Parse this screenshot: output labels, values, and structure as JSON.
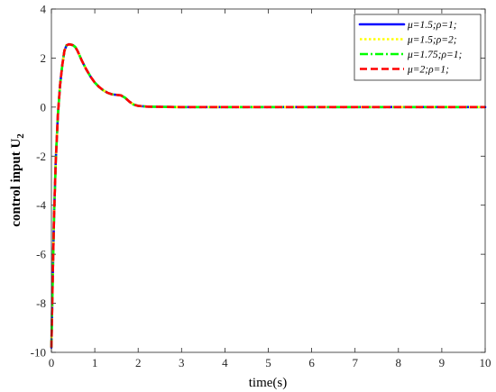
{
  "chart_data": {
    "type": "line",
    "xlabel": "time(s)",
    "ylabel": "control input U",
    "ylabel_subscript": "2",
    "xlim": [
      0,
      10
    ],
    "ylim": [
      -10,
      4
    ],
    "xticks": [
      0,
      1,
      2,
      3,
      4,
      5,
      6,
      7,
      8,
      9,
      10
    ],
    "yticks": [
      -10,
      -8,
      -6,
      -4,
      -2,
      0,
      2,
      4
    ],
    "grid": false,
    "legend_position": "top-right",
    "series": [
      {
        "name": "μ=1.5;ρ=1;",
        "color": "#0000ff",
        "dash": "solid",
        "x": [
          0,
          0.03,
          0.06,
          0.1,
          0.15,
          0.2,
          0.25,
          0.3,
          0.35,
          0.4,
          0.45,
          0.5,
          0.55,
          0.6,
          0.7,
          0.8,
          0.9,
          1.0,
          1.1,
          1.2,
          1.3,
          1.4,
          1.5,
          1.6,
          1.7,
          1.8,
          1.9,
          2.0,
          2.2,
          2.5,
          3,
          4,
          5,
          6,
          7,
          8,
          9,
          10
        ],
        "y": [
          -9.8,
          -7.0,
          -4.5,
          -2.2,
          -0.3,
          0.9,
          1.7,
          2.3,
          2.52,
          2.56,
          2.55,
          2.52,
          2.45,
          2.3,
          1.9,
          1.55,
          1.25,
          1.0,
          0.82,
          0.68,
          0.58,
          0.52,
          0.5,
          0.48,
          0.38,
          0.22,
          0.1,
          0.05,
          0.02,
          0.01,
          0,
          0,
          0,
          0,
          0,
          0,
          0,
          0
        ]
      },
      {
        "name": "μ=1.5;ρ=2;",
        "color": "#ffff00",
        "dash": "dotted",
        "x": [
          0,
          0.03,
          0.06,
          0.1,
          0.15,
          0.2,
          0.25,
          0.3,
          0.35,
          0.4,
          0.45,
          0.5,
          0.55,
          0.6,
          0.7,
          0.8,
          0.9,
          1.0,
          1.1,
          1.2,
          1.3,
          1.4,
          1.5,
          1.6,
          1.7,
          1.8,
          1.9,
          2.0,
          2.2,
          2.5,
          3,
          4,
          5,
          6,
          7,
          8,
          9,
          10
        ],
        "y": [
          -9.8,
          -7.0,
          -4.5,
          -2.2,
          -0.3,
          0.9,
          1.7,
          2.3,
          2.52,
          2.56,
          2.55,
          2.52,
          2.45,
          2.3,
          1.9,
          1.55,
          1.25,
          1.0,
          0.82,
          0.68,
          0.58,
          0.52,
          0.5,
          0.48,
          0.38,
          0.22,
          0.1,
          0.05,
          0.02,
          0.01,
          0,
          0,
          0,
          0,
          0,
          0,
          0,
          0
        ]
      },
      {
        "name": "μ=1.75;ρ=1;",
        "color": "#00ff00",
        "dash": "dashdot",
        "x": [
          0,
          0.03,
          0.06,
          0.1,
          0.15,
          0.2,
          0.25,
          0.3,
          0.35,
          0.4,
          0.45,
          0.5,
          0.55,
          0.6,
          0.7,
          0.8,
          0.9,
          1.0,
          1.1,
          1.2,
          1.3,
          1.4,
          1.5,
          1.6,
          1.7,
          1.8,
          1.9,
          2.0,
          2.2,
          2.5,
          3,
          4,
          5,
          6,
          7,
          8,
          9,
          10
        ],
        "y": [
          -9.8,
          -7.0,
          -4.5,
          -2.2,
          -0.3,
          0.9,
          1.7,
          2.3,
          2.52,
          2.56,
          2.55,
          2.52,
          2.45,
          2.3,
          1.9,
          1.55,
          1.25,
          1.0,
          0.82,
          0.68,
          0.58,
          0.52,
          0.5,
          0.48,
          0.38,
          0.22,
          0.1,
          0.05,
          0.02,
          0.01,
          0,
          0,
          0,
          0,
          0,
          0,
          0,
          0
        ]
      },
      {
        "name": "μ=2;ρ=1;",
        "color": "#ff0000",
        "dash": "dashed",
        "x": [
          0,
          0.03,
          0.06,
          0.1,
          0.15,
          0.2,
          0.25,
          0.3,
          0.35,
          0.4,
          0.45,
          0.5,
          0.55,
          0.6,
          0.7,
          0.8,
          0.9,
          1.0,
          1.1,
          1.2,
          1.3,
          1.4,
          1.5,
          1.6,
          1.7,
          1.8,
          1.9,
          2.0,
          2.2,
          2.5,
          3,
          4,
          5,
          6,
          7,
          8,
          9,
          10
        ],
        "y": [
          -9.8,
          -7.0,
          -4.5,
          -2.2,
          -0.3,
          0.9,
          1.7,
          2.3,
          2.52,
          2.56,
          2.55,
          2.52,
          2.45,
          2.3,
          1.9,
          1.55,
          1.25,
          1.0,
          0.82,
          0.68,
          0.58,
          0.52,
          0.5,
          0.48,
          0.38,
          0.22,
          0.1,
          0.05,
          0.02,
          0.01,
          0,
          0,
          0,
          0,
          0,
          0,
          0,
          0
        ]
      }
    ]
  }
}
